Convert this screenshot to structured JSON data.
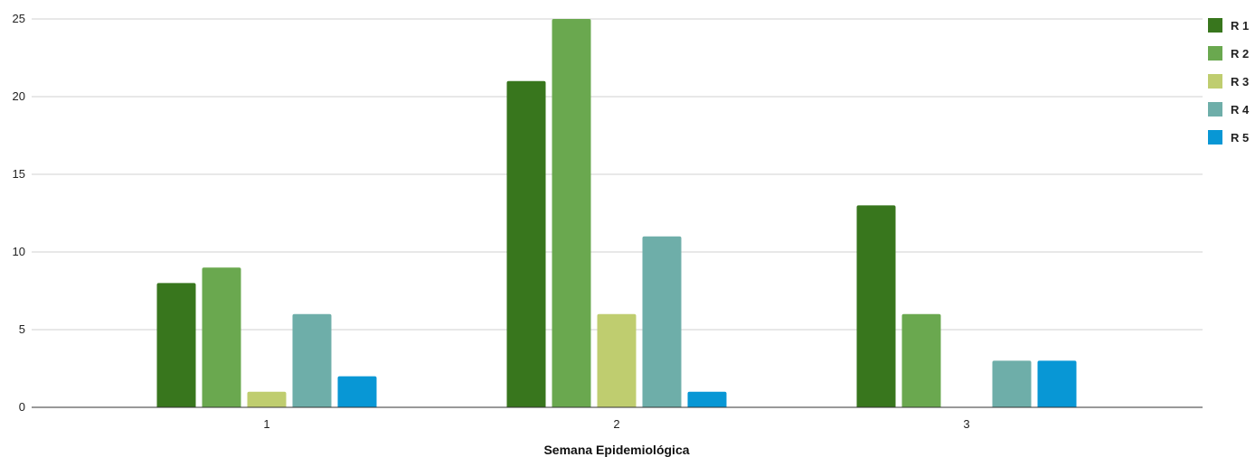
{
  "chart_data": {
    "type": "bar",
    "categories": [
      "1",
      "2",
      "3"
    ],
    "series": [
      {
        "name": "R 1",
        "color": "#38761d",
        "values": [
          8,
          21,
          13
        ]
      },
      {
        "name": "R 2",
        "color": "#6aa84f",
        "values": [
          9,
          25,
          6
        ]
      },
      {
        "name": "R 3",
        "color": "#bfcd6f",
        "values": [
          1,
          6,
          0
        ]
      },
      {
        "name": "R 4",
        "color": "#6eaea9",
        "values": [
          6,
          11,
          3
        ]
      },
      {
        "name": "R 5",
        "color": "#0897d5",
        "values": [
          2,
          1,
          3
        ]
      }
    ],
    "y_ticks": [
      0,
      5,
      10,
      15,
      20,
      25
    ],
    "ylim": [
      0,
      25
    ],
    "xlabel": "Semana Epidemiológica",
    "ylabel": "",
    "grid": true,
    "legend_position": "top-right"
  }
}
